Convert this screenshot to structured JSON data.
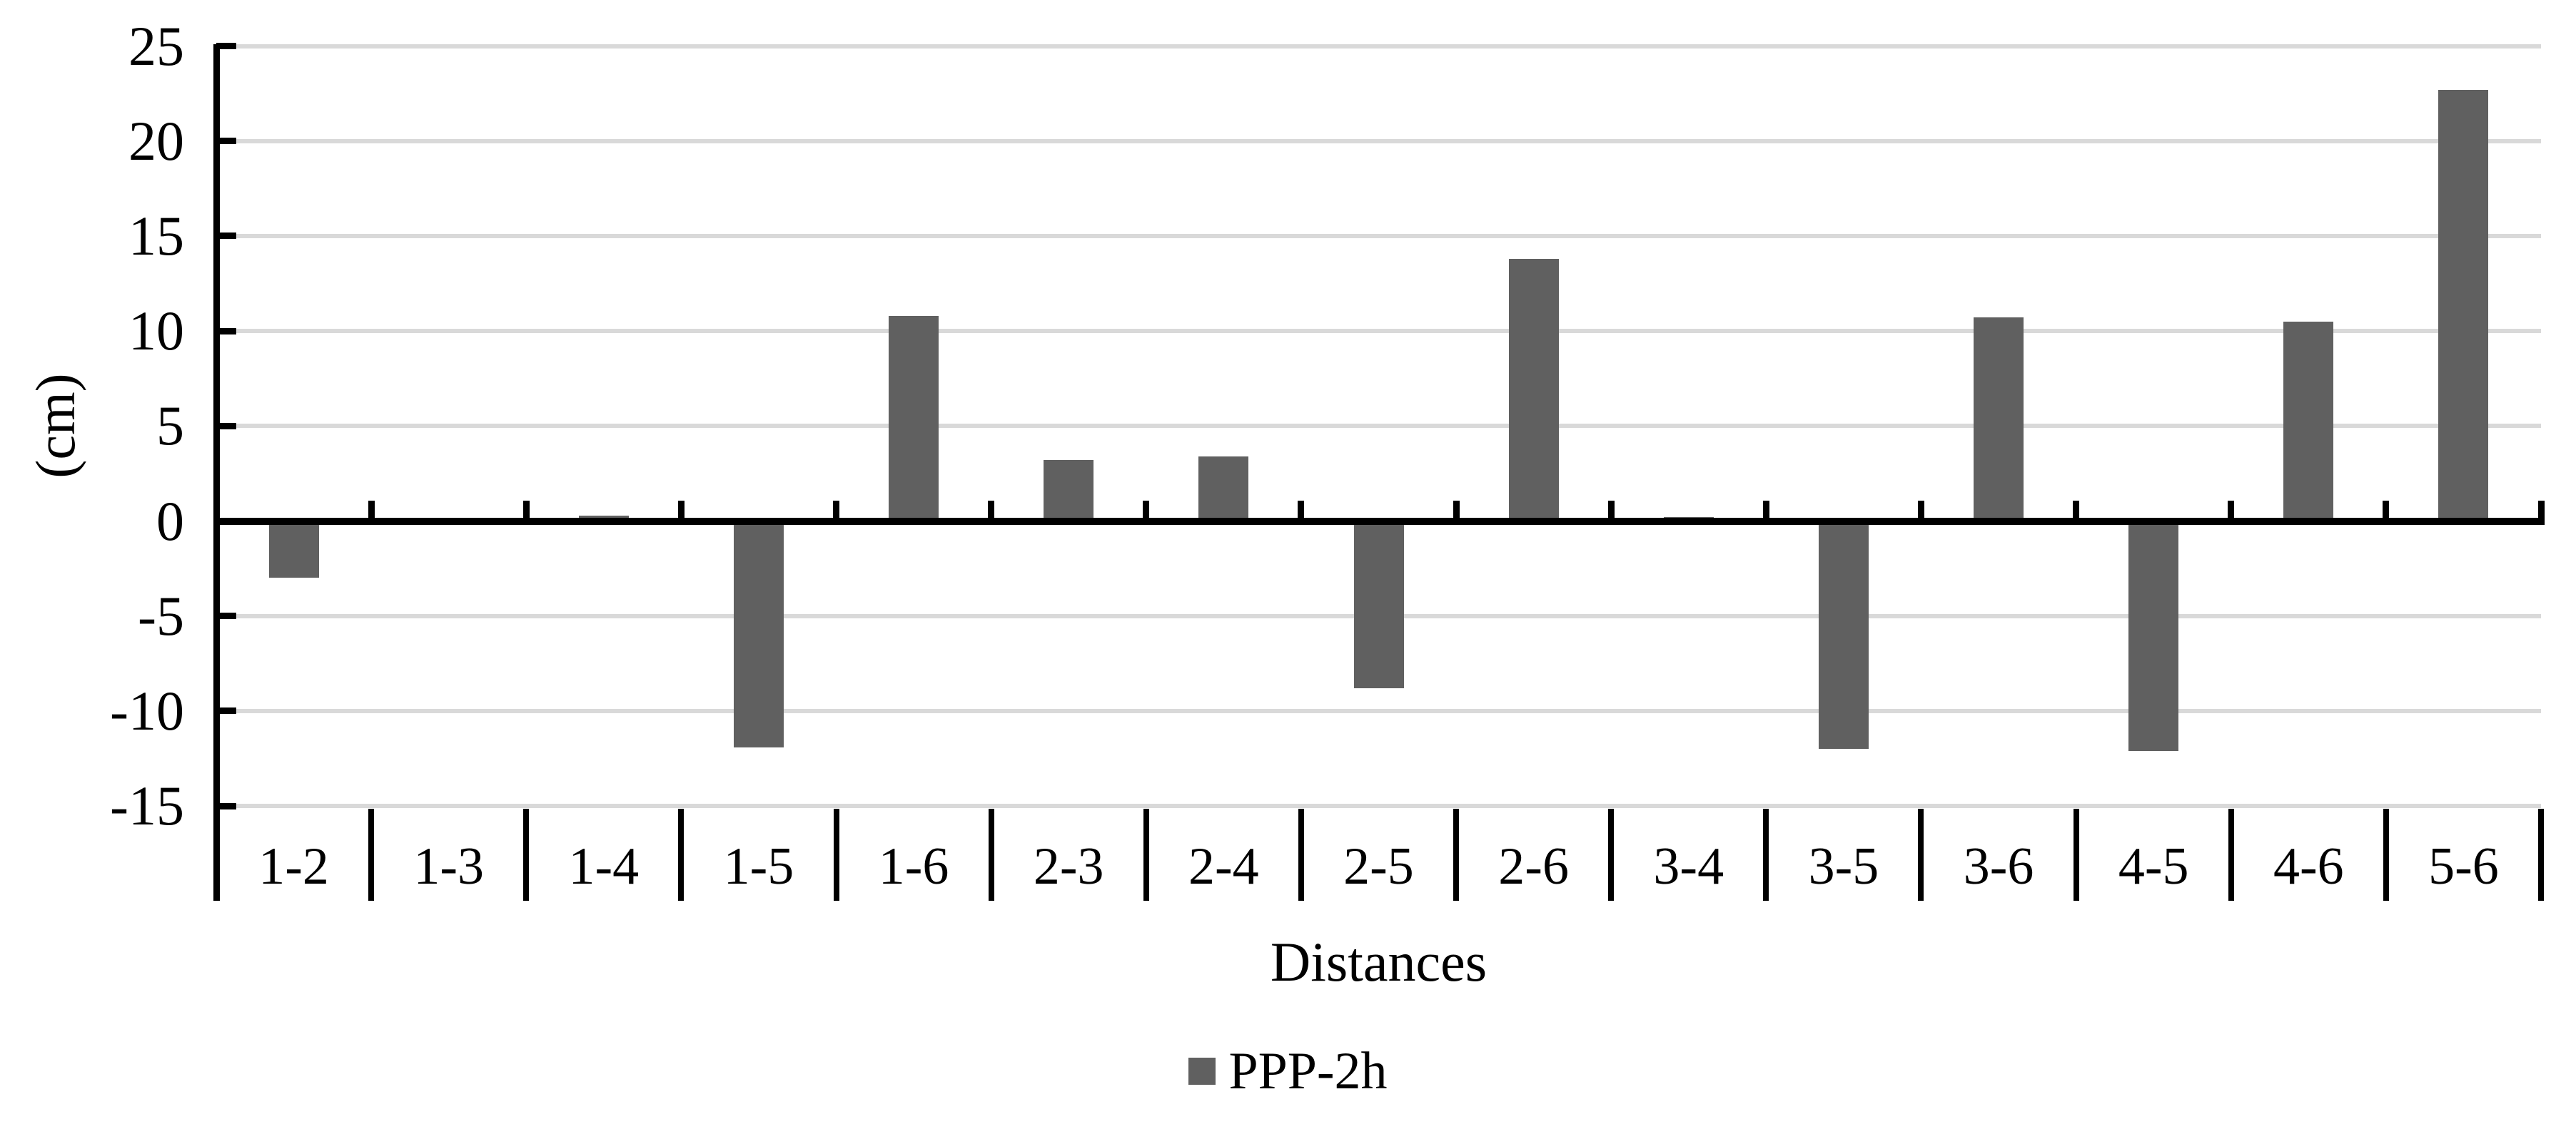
{
  "page": {
    "background": "#FFFFFF"
  },
  "chart_data": {
    "type": "bar",
    "title": "",
    "categories": [
      "1-2",
      "1-3",
      "1-4",
      "1-5",
      "1-6",
      "2-3",
      "2-4",
      "2-5",
      "2-6",
      "3-4",
      "3-5",
      "3-6",
      "4-5",
      "4-6",
      "5-6"
    ],
    "values": [
      -3.0,
      0.0,
      0.3,
      -11.9,
      10.8,
      3.2,
      3.4,
      -8.8,
      13.8,
      0.2,
      -12.0,
      10.7,
      -12.1,
      10.5,
      22.7
    ],
    "series_name": "PPP-2h",
    "xlabel": "Distances",
    "ylabel": "(cm)",
    "ylim": [
      -15,
      25
    ],
    "ytick_step": 5,
    "y_ticks": [
      25,
      20,
      15,
      10,
      5,
      0,
      -5,
      -10,
      -15
    ],
    "grid": true,
    "gridlines_at": [
      25,
      20,
      15,
      10,
      5,
      -5,
      -10,
      -15
    ],
    "legend_position": "bottom-center",
    "colors": {
      "bar": "#606060",
      "gridline": "#D9D9D9",
      "axis": "#000000",
      "text": "#000000",
      "background": "#FFFFFF"
    }
  }
}
